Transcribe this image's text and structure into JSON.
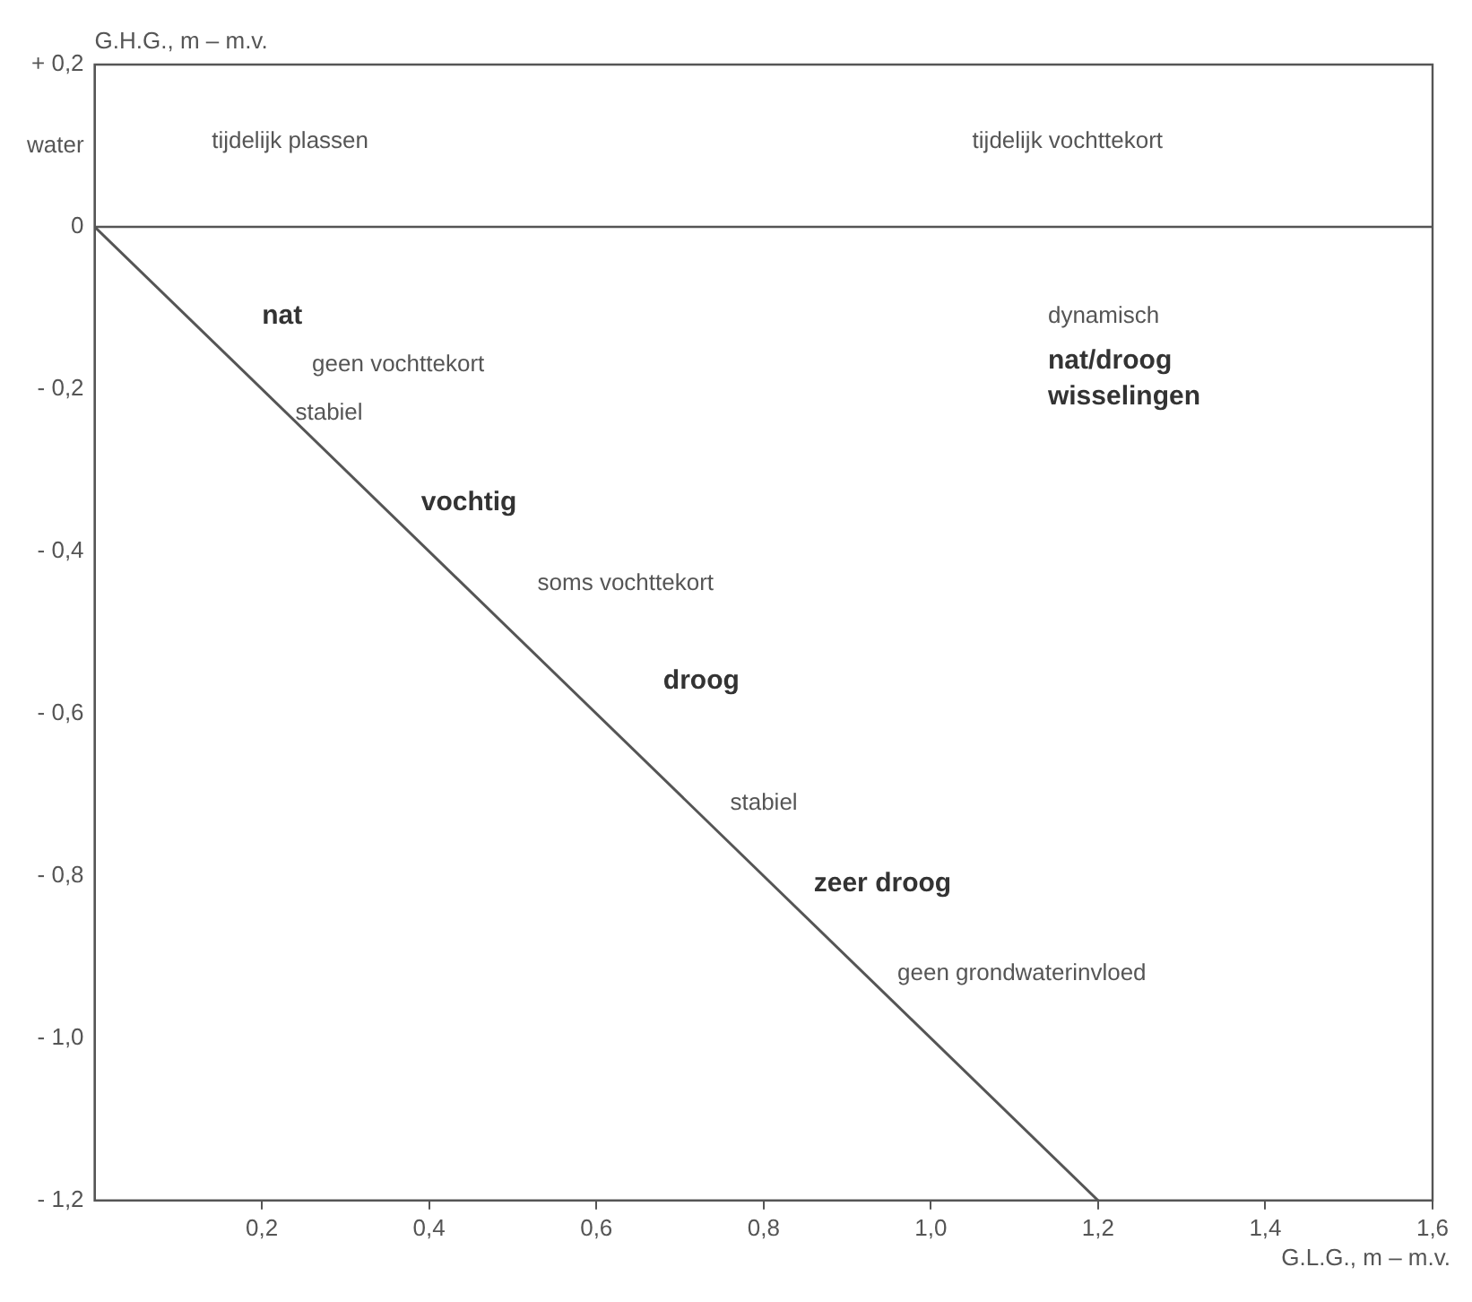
{
  "chart_data": {
    "type": "line",
    "xlabel": "G.L.G., m – m.v.",
    "ylabel": "G.H.G., m – m.v.",
    "series": [
      {
        "type": "line",
        "color": "#555555",
        "x": [
          0,
          1.2
        ],
        "values": [
          0,
          -1.2
        ]
      }
    ],
    "xlim": [
      0,
      1.6
    ],
    "xticks": [
      {
        "value": 0.2,
        "label": "0,2"
      },
      {
        "value": 0.4,
        "label": "0,4"
      },
      {
        "value": 0.6,
        "label": "0,6"
      },
      {
        "value": 0.8,
        "label": "0,8"
      },
      {
        "value": 1.0,
        "label": "1,0"
      },
      {
        "value": 1.2,
        "label": "1,2"
      },
      {
        "value": 1.4,
        "label": "1,4"
      },
      {
        "value": 1.6,
        "label": "1,6"
      }
    ],
    "ylim": [
      -1.2,
      0.2
    ],
    "yticks": [
      {
        "value": 0.2,
        "label": "+ 0,2"
      },
      {
        "value": 0.1,
        "label": "water"
      },
      {
        "value": 0,
        "label": "0"
      },
      {
        "value": -0.2,
        "label": "- 0,2"
      },
      {
        "value": -0.4,
        "label": "- 0,4"
      },
      {
        "value": -0.6,
        "label": "- 0,6"
      },
      {
        "value": -0.8,
        "label": "- 0,8"
      },
      {
        "value": -1.0,
        "label": "- 1,0"
      },
      {
        "value": -1.2,
        "label": "- 1,2"
      }
    ],
    "ref_lines": [
      {
        "axis": "y",
        "value": 0,
        "color": "#555555"
      }
    ],
    "grid": false,
    "legend": false,
    "marker": "none",
    "line_style": "solid",
    "annotations": [
      "tijdelijk plassen",
      "tijdelijk vochttekort",
      "nat",
      "geen vochttekort",
      "stabiel",
      "vochtig",
      "soms vochttekort",
      "droog",
      "stabiel",
      "zeer droog",
      "geen grondwaterinvloed",
      "dynamisch",
      "nat/droog",
      "wisselingen"
    ]
  }
}
